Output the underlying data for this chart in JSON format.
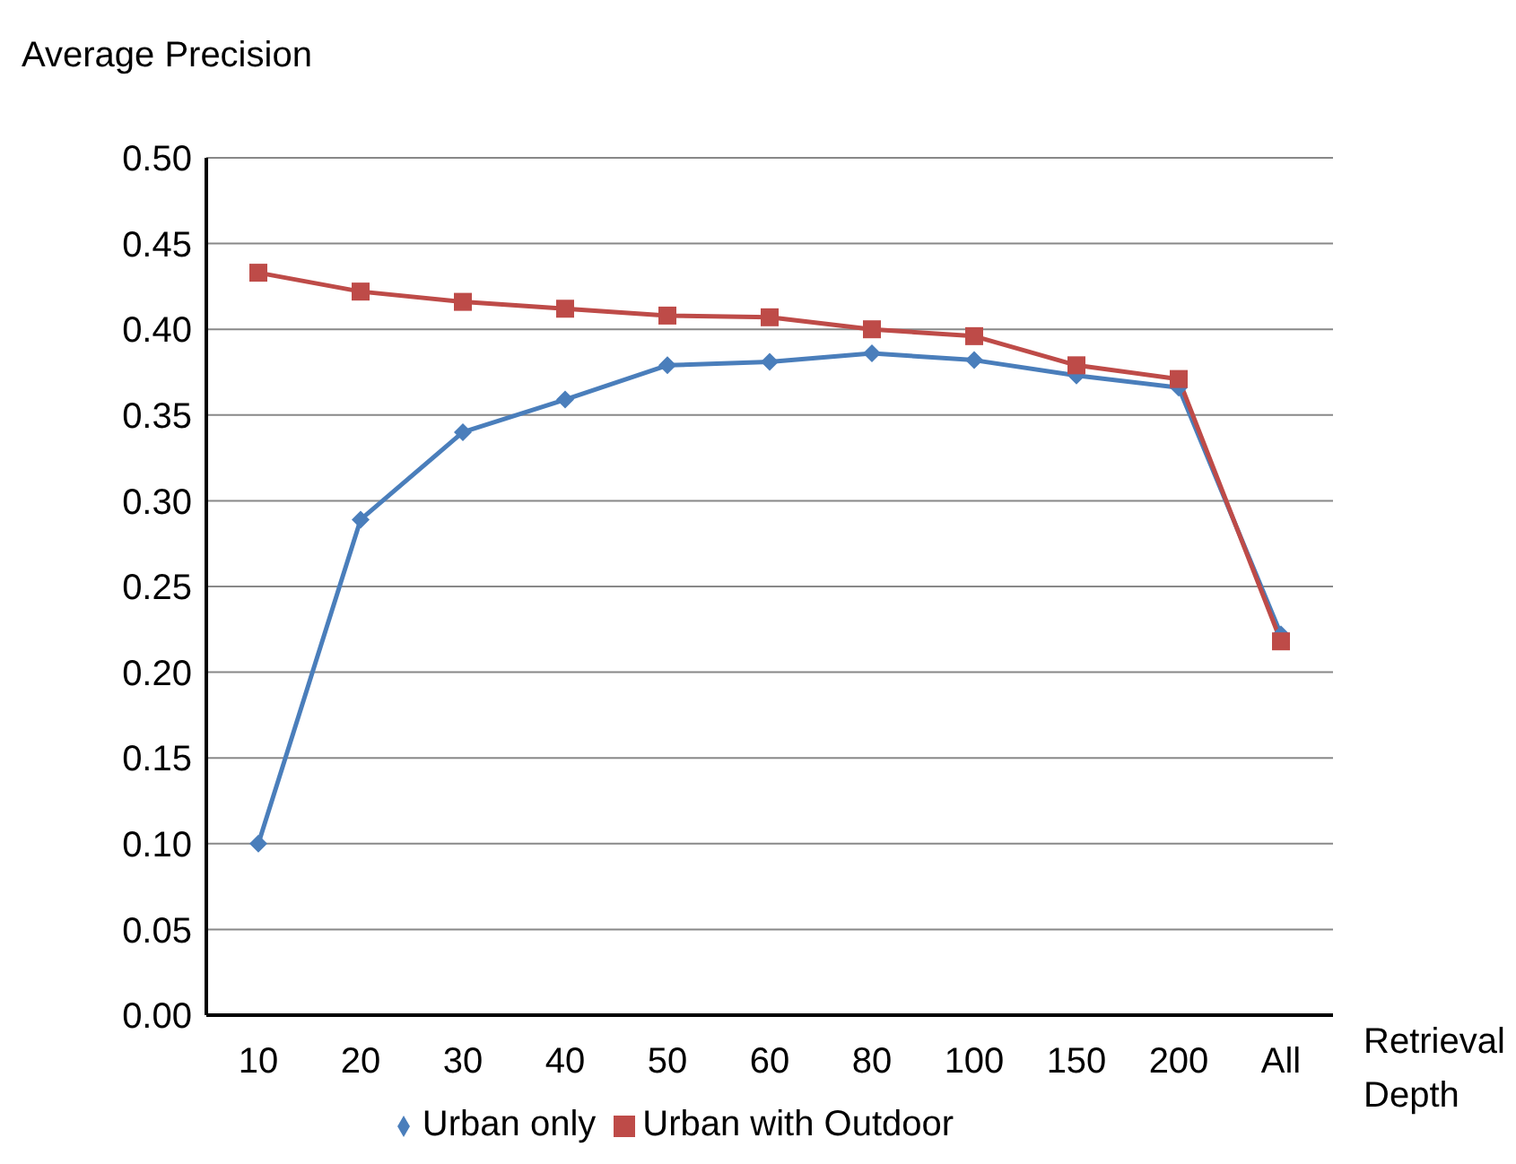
{
  "chart_data": {
    "type": "line",
    "ylabel": "Average Precision",
    "xlabel": "Retrieval Depth",
    "categories": [
      "10",
      "20",
      "30",
      "40",
      "50",
      "60",
      "80",
      "100",
      "150",
      "200",
      "All"
    ],
    "series": [
      {
        "name": "Urban only",
        "color": "#4a7ebb",
        "marker": "diamond",
        "values": [
          0.1,
          0.289,
          0.34,
          0.359,
          0.379,
          0.381,
          0.386,
          0.382,
          0.373,
          0.366,
          0.222
        ]
      },
      {
        "name": "Urban with Outdoor",
        "color": "#be4b48",
        "marker": "square",
        "values": [
          0.433,
          0.422,
          0.416,
          0.412,
          0.408,
          0.407,
          0.4,
          0.396,
          0.379,
          0.371,
          0.218
        ]
      }
    ],
    "ylim": [
      0,
      0.5
    ],
    "yticks": [
      {
        "value": 0,
        "label": "0.00"
      },
      {
        "value": 0.05,
        "label": "0.05"
      },
      {
        "value": 0.1,
        "label": "0.10"
      },
      {
        "value": 0.15,
        "label": "0.15"
      },
      {
        "value": 0.2,
        "label": "0.20"
      },
      {
        "value": 0.25,
        "label": "0.25"
      },
      {
        "value": 0.3,
        "label": "0.30"
      },
      {
        "value": 0.35,
        "label": "0.35"
      },
      {
        "value": 0.4,
        "label": "0.40"
      },
      {
        "value": 0.45,
        "label": "0.45"
      },
      {
        "value": 0.5,
        "label": "0.50"
      }
    ],
    "grid": "y",
    "legend": "bottom",
    "line_style": "solid"
  }
}
